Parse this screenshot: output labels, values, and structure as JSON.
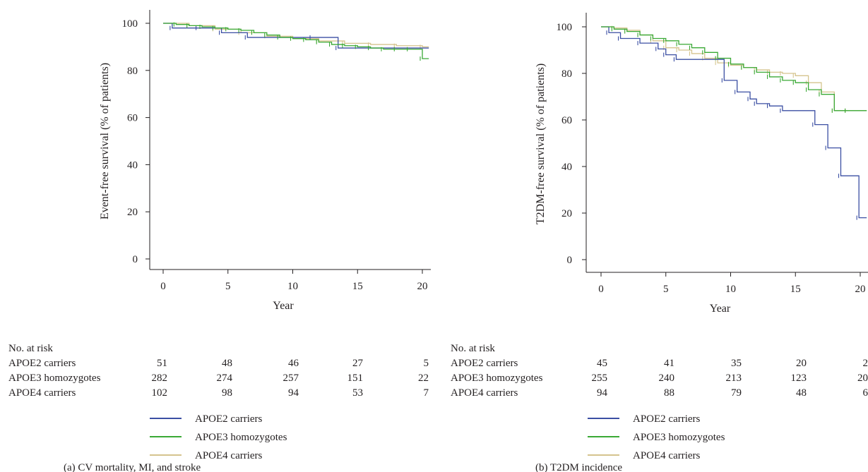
{
  "colors": {
    "APOE2 carriers": "#3b4fa3",
    "APOE3 homozygotes": "#3aa935",
    "APOE4 carriers": "#d5c48e",
    "axis": "#231f20"
  },
  "chart_data": [
    {
      "type": "line",
      "subtype": "kaplan-meier step",
      "caption": "(a)  CV mortality, MI, and stroke",
      "xlabel": "Year",
      "ylabel": "Event-free survival (% of patients)",
      "xlim": [
        0,
        20.5
      ],
      "ylim": [
        -3,
        103
      ],
      "xticks": [
        0,
        5,
        10,
        15,
        20
      ],
      "yticks": [
        0,
        20,
        40,
        60,
        80,
        100
      ],
      "grid": false,
      "legend_position": "below",
      "series": [
        {
          "name": "APOE2 carriers",
          "x": [
            0,
            0.7,
            2.7,
            4.5,
            6.5,
            11.5,
            13.5,
            20.5
          ],
          "y": [
            100,
            98,
            98,
            96,
            94,
            94,
            89.5,
            89.5
          ]
        },
        {
          "name": "APOE3 homozygotes",
          "x": [
            0,
            1,
            2,
            3,
            4,
            5,
            6,
            7,
            8,
            9,
            10,
            11,
            12,
            13,
            14,
            15,
            16,
            17,
            18,
            19,
            20,
            20.5
          ],
          "y": [
            100,
            99.5,
            99,
            98.5,
            98,
            97.5,
            97,
            96,
            95,
            94,
            93.5,
            93,
            92,
            91,
            90.5,
            90,
            89.5,
            89,
            89,
            89,
            85,
            85
          ]
        },
        {
          "name": "APOE4 carriers",
          "x": [
            0,
            2,
            4,
            6,
            8,
            10,
            12,
            14,
            16,
            18,
            20,
            20.5
          ],
          "y": [
            100,
            99,
            97.5,
            96,
            94.5,
            93.5,
            92.5,
            91.5,
            91,
            90.5,
            90,
            90
          ]
        }
      ],
      "risk_table": {
        "title": "No. at risk",
        "times": [
          0,
          5,
          10,
          15,
          20
        ],
        "rows": [
          {
            "name": "APOE2 carriers",
            "values": [
              51,
              48,
              46,
              27,
              5
            ]
          },
          {
            "name": "APOE3 homozygotes",
            "values": [
              282,
              274,
              257,
              151,
              22
            ]
          },
          {
            "name": "APOE4 carriers",
            "values": [
              102,
              98,
              94,
              53,
              7
            ]
          }
        ]
      }
    },
    {
      "type": "line",
      "subtype": "kaplan-meier step",
      "caption": "(b)  T2DM incidence",
      "xlabel": "Year",
      "ylabel": "T2DM-free survival (% of patients)",
      "xlim": [
        -1,
        20.5
      ],
      "ylim": [
        -3,
        105
      ],
      "xticks": [
        0,
        5,
        10,
        15,
        20
      ],
      "yticks": [
        0,
        20,
        40,
        60,
        80,
        100
      ],
      "grid": false,
      "legend_position": "below",
      "series": [
        {
          "name": "APOE2 carriers",
          "x": [
            0,
            0.6,
            1.5,
            3,
            4.4,
            5,
            5.8,
            9.5,
            10.5,
            11.5,
            12,
            13,
            14,
            16.5,
            17.5,
            18.5,
            19.9,
            20.5
          ],
          "y": [
            100,
            97.5,
            95,
            93,
            90.5,
            88,
            86,
            77,
            72,
            69,
            67,
            66,
            64,
            58,
            48,
            36,
            18,
            18
          ]
        },
        {
          "name": "APOE3 homozygotes",
          "x": [
            0,
            1,
            2,
            3,
            4,
            5,
            6,
            7,
            8,
            9,
            10,
            11,
            12,
            13,
            14,
            15,
            16,
            17,
            18,
            19,
            20.5
          ],
          "y": [
            100,
            99,
            98,
            96.5,
            95,
            94,
            92.5,
            91,
            89,
            86.5,
            84,
            82.5,
            80.5,
            78.5,
            77,
            76,
            73,
            71,
            64,
            64,
            64
          ]
        },
        {
          "name": "APOE4 carriers",
          "x": [
            0,
            1,
            2,
            3,
            4,
            5,
            6,
            7,
            8,
            9,
            10,
            11,
            12,
            13,
            14,
            15,
            16,
            17,
            18,
            19,
            20.5
          ],
          "y": [
            100,
            99.5,
            98.5,
            96.5,
            94,
            91,
            90,
            88.5,
            86.5,
            84.5,
            83.5,
            82.5,
            81.5,
            80.5,
            80,
            79,
            76,
            72,
            64,
            64,
            64
          ]
        }
      ],
      "risk_table": {
        "title": "No. at risk",
        "times": [
          0,
          5,
          10,
          15,
          20
        ],
        "rows": [
          {
            "name": "APOE2 carriers",
            "values": [
              45,
              41,
              35,
              20,
              2
            ]
          },
          {
            "name": "APOE3 homozygotes",
            "values": [
              255,
              240,
              213,
              123,
              20
            ]
          },
          {
            "name": "APOE4 carriers",
            "values": [
              94,
              88,
              79,
              48,
              6
            ]
          }
        ]
      }
    }
  ]
}
